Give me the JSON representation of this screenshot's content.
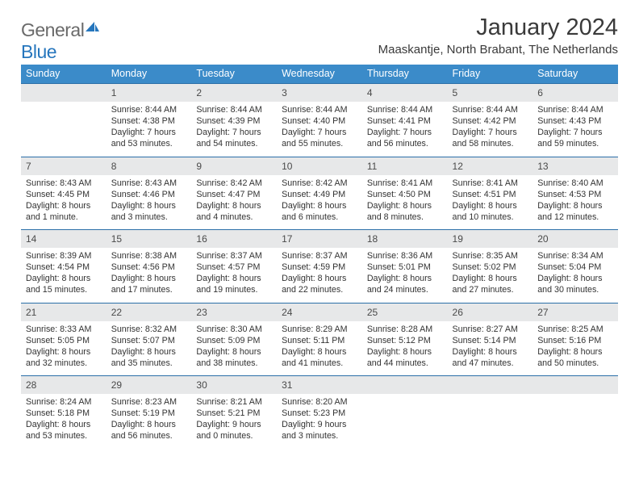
{
  "logo": {
    "word1": "General",
    "word2": "Blue"
  },
  "header": {
    "title": "January 2024",
    "location": "Maaskantje, North Brabant, The Netherlands"
  },
  "colors": {
    "header_bg": "#3b8bc9",
    "header_text": "#ffffff",
    "daynum_bg": "#e7e8e9",
    "rule": "#2b6fa8",
    "body_text": "#333333",
    "logo_gray": "#6a6a6a",
    "logo_blue": "#2676bd"
  },
  "weekdays": [
    "Sunday",
    "Monday",
    "Tuesday",
    "Wednesday",
    "Thursday",
    "Friday",
    "Saturday"
  ],
  "weeks": [
    [
      null,
      {
        "n": "1",
        "sr": "8:44 AM",
        "ss": "4:38 PM",
        "dl": "7 hours and 53 minutes."
      },
      {
        "n": "2",
        "sr": "8:44 AM",
        "ss": "4:39 PM",
        "dl": "7 hours and 54 minutes."
      },
      {
        "n": "3",
        "sr": "8:44 AM",
        "ss": "4:40 PM",
        "dl": "7 hours and 55 minutes."
      },
      {
        "n": "4",
        "sr": "8:44 AM",
        "ss": "4:41 PM",
        "dl": "7 hours and 56 minutes."
      },
      {
        "n": "5",
        "sr": "8:44 AM",
        "ss": "4:42 PM",
        "dl": "7 hours and 58 minutes."
      },
      {
        "n": "6",
        "sr": "8:44 AM",
        "ss": "4:43 PM",
        "dl": "7 hours and 59 minutes."
      }
    ],
    [
      {
        "n": "7",
        "sr": "8:43 AM",
        "ss": "4:45 PM",
        "dl": "8 hours and 1 minute."
      },
      {
        "n": "8",
        "sr": "8:43 AM",
        "ss": "4:46 PM",
        "dl": "8 hours and 3 minutes."
      },
      {
        "n": "9",
        "sr": "8:42 AM",
        "ss": "4:47 PM",
        "dl": "8 hours and 4 minutes."
      },
      {
        "n": "10",
        "sr": "8:42 AM",
        "ss": "4:49 PM",
        "dl": "8 hours and 6 minutes."
      },
      {
        "n": "11",
        "sr": "8:41 AM",
        "ss": "4:50 PM",
        "dl": "8 hours and 8 minutes."
      },
      {
        "n": "12",
        "sr": "8:41 AM",
        "ss": "4:51 PM",
        "dl": "8 hours and 10 minutes."
      },
      {
        "n": "13",
        "sr": "8:40 AM",
        "ss": "4:53 PM",
        "dl": "8 hours and 12 minutes."
      }
    ],
    [
      {
        "n": "14",
        "sr": "8:39 AM",
        "ss": "4:54 PM",
        "dl": "8 hours and 15 minutes."
      },
      {
        "n": "15",
        "sr": "8:38 AM",
        "ss": "4:56 PM",
        "dl": "8 hours and 17 minutes."
      },
      {
        "n": "16",
        "sr": "8:37 AM",
        "ss": "4:57 PM",
        "dl": "8 hours and 19 minutes."
      },
      {
        "n": "17",
        "sr": "8:37 AM",
        "ss": "4:59 PM",
        "dl": "8 hours and 22 minutes."
      },
      {
        "n": "18",
        "sr": "8:36 AM",
        "ss": "5:01 PM",
        "dl": "8 hours and 24 minutes."
      },
      {
        "n": "19",
        "sr": "8:35 AM",
        "ss": "5:02 PM",
        "dl": "8 hours and 27 minutes."
      },
      {
        "n": "20",
        "sr": "8:34 AM",
        "ss": "5:04 PM",
        "dl": "8 hours and 30 minutes."
      }
    ],
    [
      {
        "n": "21",
        "sr": "8:33 AM",
        "ss": "5:05 PM",
        "dl": "8 hours and 32 minutes."
      },
      {
        "n": "22",
        "sr": "8:32 AM",
        "ss": "5:07 PM",
        "dl": "8 hours and 35 minutes."
      },
      {
        "n": "23",
        "sr": "8:30 AM",
        "ss": "5:09 PM",
        "dl": "8 hours and 38 minutes."
      },
      {
        "n": "24",
        "sr": "8:29 AM",
        "ss": "5:11 PM",
        "dl": "8 hours and 41 minutes."
      },
      {
        "n": "25",
        "sr": "8:28 AM",
        "ss": "5:12 PM",
        "dl": "8 hours and 44 minutes."
      },
      {
        "n": "26",
        "sr": "8:27 AM",
        "ss": "5:14 PM",
        "dl": "8 hours and 47 minutes."
      },
      {
        "n": "27",
        "sr": "8:25 AM",
        "ss": "5:16 PM",
        "dl": "8 hours and 50 minutes."
      }
    ],
    [
      {
        "n": "28",
        "sr": "8:24 AM",
        "ss": "5:18 PM",
        "dl": "8 hours and 53 minutes."
      },
      {
        "n": "29",
        "sr": "8:23 AM",
        "ss": "5:19 PM",
        "dl": "8 hours and 56 minutes."
      },
      {
        "n": "30",
        "sr": "8:21 AM",
        "ss": "5:21 PM",
        "dl": "9 hours and 0 minutes."
      },
      {
        "n": "31",
        "sr": "8:20 AM",
        "ss": "5:23 PM",
        "dl": "9 hours and 3 minutes."
      },
      null,
      null,
      null
    ]
  ],
  "labels": {
    "sunrise": "Sunrise:",
    "sunset": "Sunset:",
    "daylight": "Daylight:"
  }
}
